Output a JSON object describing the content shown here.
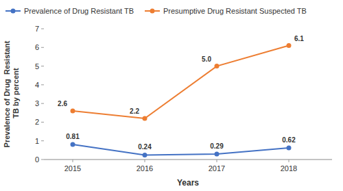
{
  "chart_data": {
    "type": "line",
    "x": [
      2015,
      2016,
      2017,
      2018
    ],
    "xlim": [
      2014.6,
      2018.6
    ],
    "xticks": [
      2015,
      2016,
      2017,
      2018
    ],
    "ylim": [
      0,
      7
    ],
    "yticks": [
      0,
      1,
      2,
      3,
      4,
      5,
      6,
      7
    ],
    "x_label": "Years",
    "y_label": "Prevalence of Drug  Resistant\n TB by percent",
    "grid": false,
    "legend": "top",
    "data_labels": true,
    "marker": "circle",
    "series": [
      {
        "name": "Prevalence of Drug Resistant TB",
        "color": "#4472C4",
        "values": [
          0.81,
          0.24,
          0.29,
          0.62
        ],
        "value_labels": [
          "0.81",
          "0.24",
          "0.29",
          "0.62"
        ]
      },
      {
        "name": "Presumptive Drug Resistant Suspected TB",
        "color": "#ED7D31",
        "values": [
          2.6,
          2.2,
          5.0,
          6.1
        ],
        "value_labels": [
          "2.6",
          "2.2",
          "5.0",
          "6.1"
        ]
      }
    ]
  }
}
